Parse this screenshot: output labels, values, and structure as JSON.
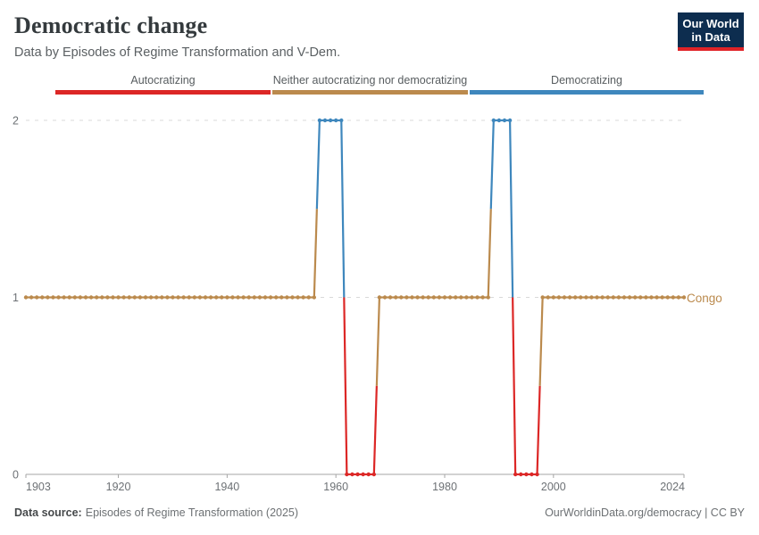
{
  "header": {
    "title": "Democratic change",
    "subtitle": "Data by Episodes of Regime Transformation and V-Dem."
  },
  "logo": {
    "line1": "Our World",
    "line2": "in Data",
    "bg_color": "#0d2d4f",
    "accent_color": "#e02327"
  },
  "legend": {
    "items": [
      {
        "label": "Autocratizing",
        "color": "#dc2726"
      },
      {
        "label": "Neither autocratizing nor democratizing",
        "color": "#bb8a4d"
      },
      {
        "label": "Democratizing",
        "color": "#3e87bd"
      }
    ]
  },
  "chart_data": {
    "type": "line",
    "title": "Democratic change",
    "entity": "Congo",
    "xlim": [
      1903,
      2024
    ],
    "ylim": [
      0,
      2
    ],
    "x_ticks": [
      1903,
      1920,
      1940,
      1960,
      1980,
      2000,
      2024
    ],
    "y_ticks": [
      0,
      1,
      2
    ],
    "grid": "dashed horizontal gridlines at y=1 and y=2",
    "legend_position": "top",
    "point_markers": "one dot per year",
    "status_colors": {
      "autocratizing": "#dc2726",
      "neither": "#bb8a4d",
      "democratizing": "#3e87bd"
    },
    "series": [
      {
        "name": "Congo",
        "segments": [
          {
            "start_year": 1903,
            "end_year": 1956,
            "value": 1,
            "status": "neither"
          },
          {
            "start_year": 1957,
            "end_year": 1961,
            "value": 2,
            "status": "democratizing"
          },
          {
            "start_year": 1962,
            "end_year": 1967,
            "value": 0,
            "status": "autocratizing"
          },
          {
            "start_year": 1968,
            "end_year": 1988,
            "value": 1,
            "status": "neither"
          },
          {
            "start_year": 1989,
            "end_year": 1992,
            "value": 2,
            "status": "democratizing"
          },
          {
            "start_year": 1993,
            "end_year": 1997,
            "value": 0,
            "status": "autocratizing"
          },
          {
            "start_year": 1998,
            "end_year": 2024,
            "value": 1,
            "status": "neither"
          }
        ]
      }
    ]
  },
  "footer": {
    "datasource_label": "Data source:",
    "datasource_value": "Episodes of Regime Transformation (2025)",
    "credit": "OurWorldinData.org/democracy | CC BY"
  }
}
